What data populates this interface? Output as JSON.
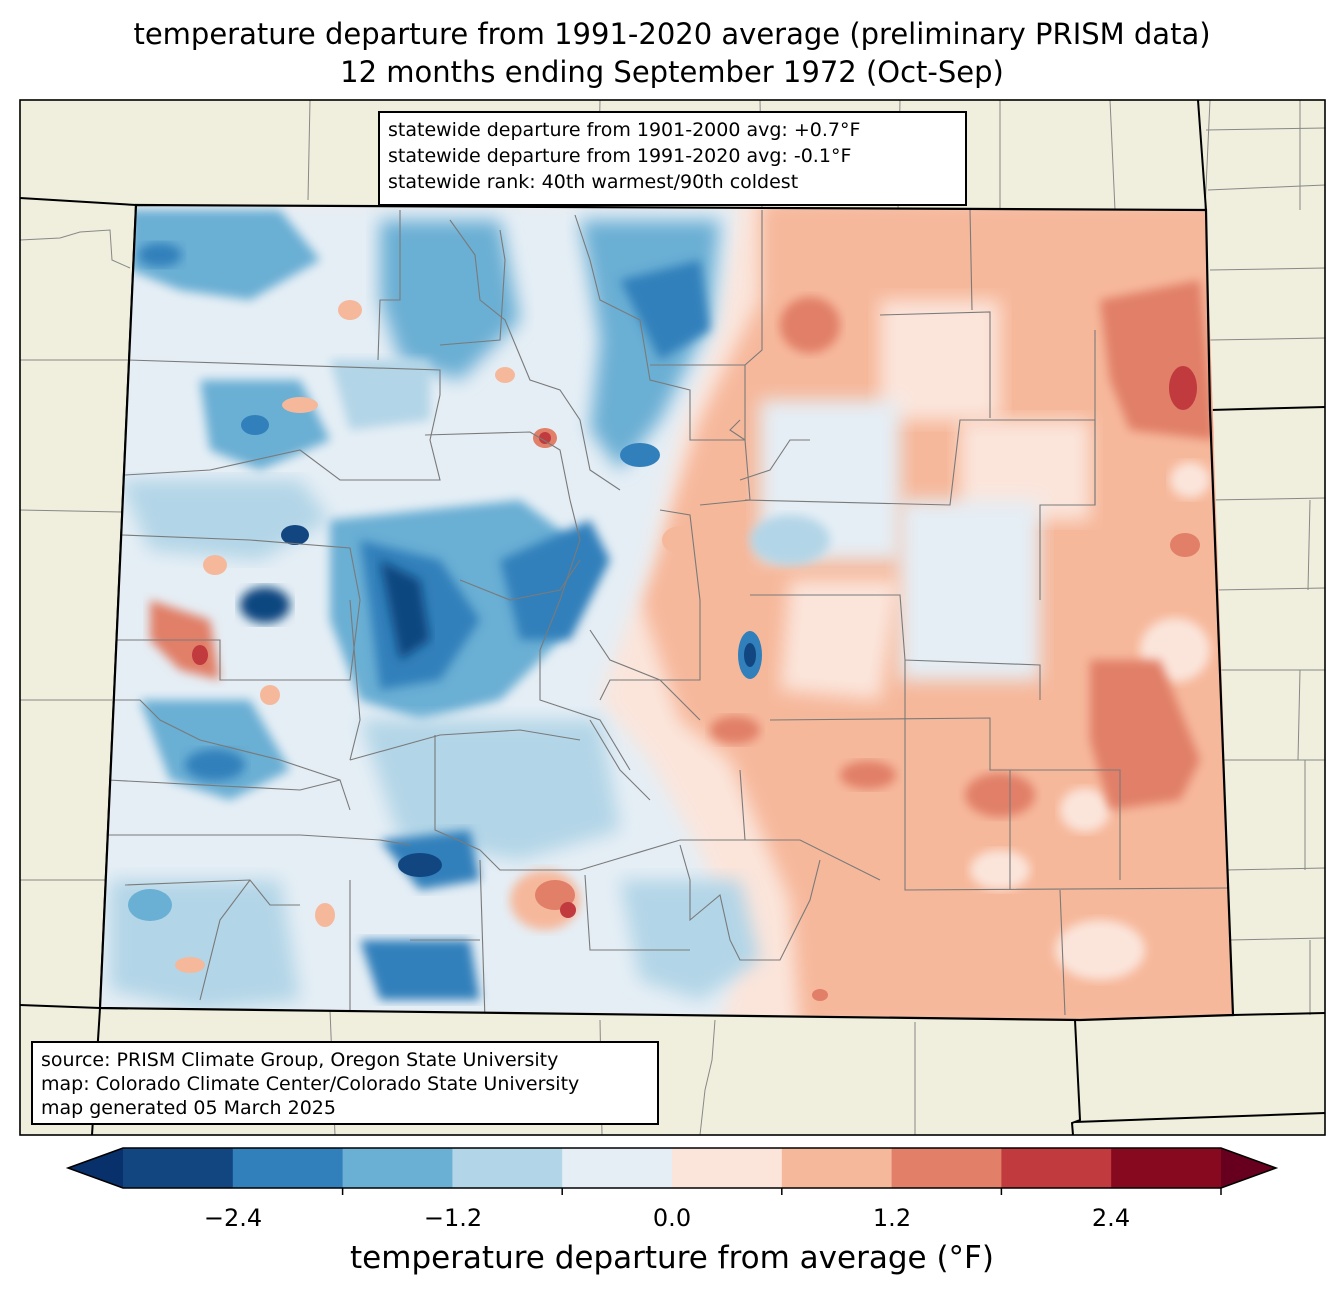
{
  "title": {
    "line1": "temperature departure from 1991-2020 average (preliminary PRISM data)",
    "line2": "12 months ending September 1972 (Oct-Sep)"
  },
  "stats": {
    "line1": "statewide departure from 1901-2000 avg: +0.7°F",
    "line2": "statewide departure from 1991-2020 avg: -0.1°F",
    "line3": "statewide rank: 40th warmest/90th coldest"
  },
  "credits": {
    "line1": "source: PRISM Climate Group, Oregon State University",
    "line2": "map: Colorado Climate Center/Colorado State University",
    "line3": "map generated 05 March 2025"
  },
  "colorbar": {
    "label": "temperature departure from average (°F)",
    "ticks": [
      "−2.4",
      "−1.2",
      "0.0",
      "1.2",
      "2.4"
    ],
    "colors": [
      "#08306b",
      "#114680",
      "#3180bb",
      "#6aafd4",
      "#b2d5e7",
      "#e5eef5",
      "#fbe5db",
      "#f6b89b",
      "#e17f68",
      "#c03a3e",
      "#87091f",
      "#67001f"
    ]
  },
  "map_colors": {
    "background_land": "#f0eedc",
    "plains_warm": "#f6b89b",
    "neutral_warm": "#fbe5db",
    "neutral_cool": "#e5eef5",
    "cool": "#b2d5e7",
    "cooler": "#6aafd4",
    "cold": "#3180bb",
    "coldest": "#114680",
    "warm": "#e17f68",
    "hot": "#c03a3e"
  }
}
